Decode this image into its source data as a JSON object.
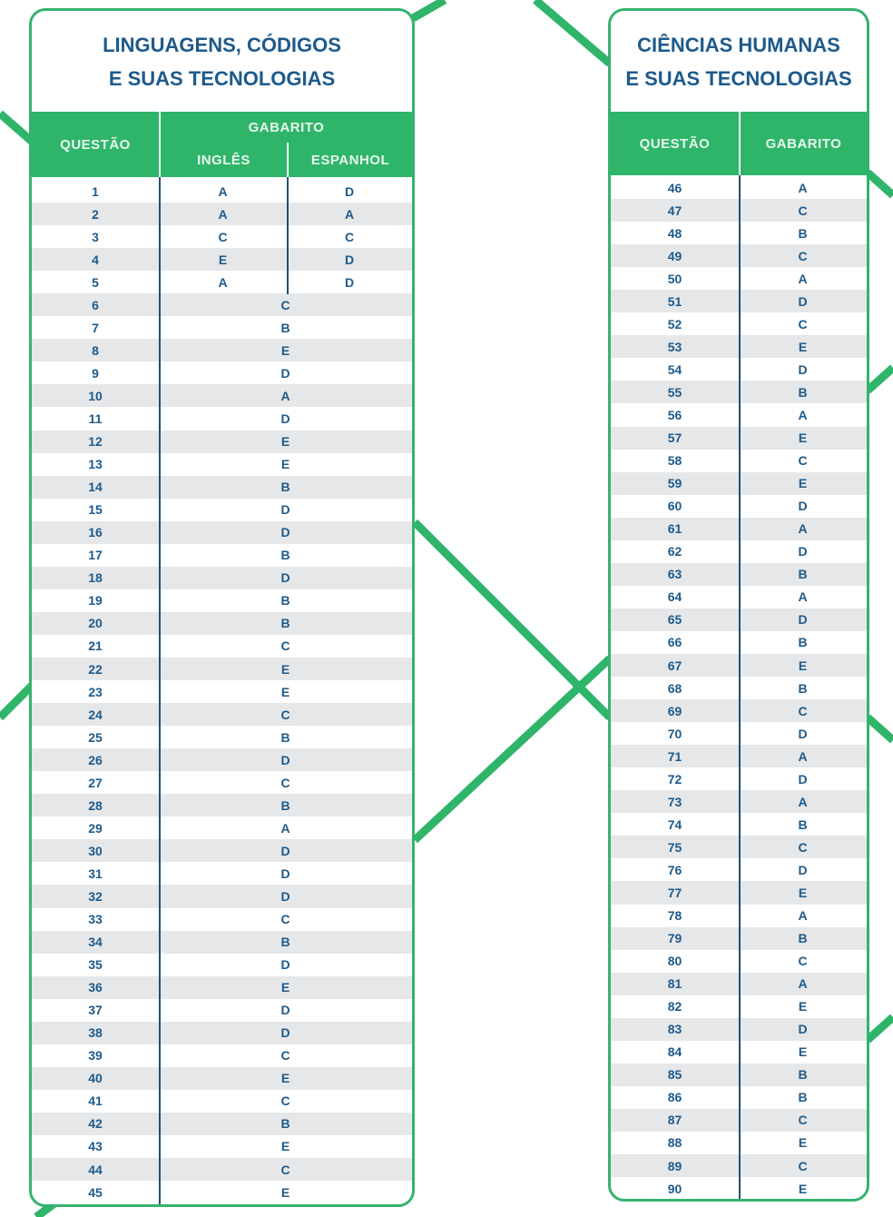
{
  "colors": {
    "green": "#2fb56a",
    "text": "#1d5a8c",
    "stripe": "#e6e7e9"
  },
  "left": {
    "title_line1": "LINGUAGENS, CÓDIGOS",
    "title_line2": "E SUAS TECNOLOGIAS",
    "col_questao": "QUESTÃO",
    "col_gabarito": "GABARITO",
    "col_ingles": "INGLÊS",
    "col_espanhol": "ESPANHOL",
    "language_rows": [
      {
        "q": "1",
        "ingles": "A",
        "espanhol": "D"
      },
      {
        "q": "2",
        "ingles": "A",
        "espanhol": "A"
      },
      {
        "q": "3",
        "ingles": "C",
        "espanhol": "C"
      },
      {
        "q": "4",
        "ingles": "E",
        "espanhol": "D"
      },
      {
        "q": "5",
        "ingles": "A",
        "espanhol": "D"
      }
    ],
    "rows": [
      {
        "q": "6",
        "a": "C"
      },
      {
        "q": "7",
        "a": "B"
      },
      {
        "q": "8",
        "a": "E"
      },
      {
        "q": "9",
        "a": "D"
      },
      {
        "q": "10",
        "a": "A"
      },
      {
        "q": "11",
        "a": "D"
      },
      {
        "q": "12",
        "a": "E"
      },
      {
        "q": "13",
        "a": "E"
      },
      {
        "q": "14",
        "a": "B"
      },
      {
        "q": "15",
        "a": "D"
      },
      {
        "q": "16",
        "a": "D"
      },
      {
        "q": "17",
        "a": "B"
      },
      {
        "q": "18",
        "a": "D"
      },
      {
        "q": "19",
        "a": "B"
      },
      {
        "q": "20",
        "a": "B"
      },
      {
        "q": "21",
        "a": "C"
      },
      {
        "q": "22",
        "a": "E"
      },
      {
        "q": "23",
        "a": "E"
      },
      {
        "q": "24",
        "a": "C"
      },
      {
        "q": "25",
        "a": "B"
      },
      {
        "q": "26",
        "a": "D"
      },
      {
        "q": "27",
        "a": "C"
      },
      {
        "q": "28",
        "a": "B"
      },
      {
        "q": "29",
        "a": "A"
      },
      {
        "q": "30",
        "a": "D"
      },
      {
        "q": "31",
        "a": "D"
      },
      {
        "q": "32",
        "a": "D"
      },
      {
        "q": "33",
        "a": "C"
      },
      {
        "q": "34",
        "a": "B"
      },
      {
        "q": "35",
        "a": "D"
      },
      {
        "q": "36",
        "a": "E"
      },
      {
        "q": "37",
        "a": "D"
      },
      {
        "q": "38",
        "a": "D"
      },
      {
        "q": "39",
        "a": "C"
      },
      {
        "q": "40",
        "a": "E"
      },
      {
        "q": "41",
        "a": "C"
      },
      {
        "q": "42",
        "a": "B"
      },
      {
        "q": "43",
        "a": "E"
      },
      {
        "q": "44",
        "a": "C"
      },
      {
        "q": "45",
        "a": "E"
      }
    ]
  },
  "right": {
    "title_line1": "CIÊNCIAS HUMANAS",
    "title_line2": "E SUAS TECNOLOGIAS",
    "col_questao": "QUESTÃO",
    "col_gabarito": "GABARITO",
    "rows": [
      {
        "q": "46",
        "a": "A"
      },
      {
        "q": "47",
        "a": "C"
      },
      {
        "q": "48",
        "a": "B"
      },
      {
        "q": "49",
        "a": "C"
      },
      {
        "q": "50",
        "a": "A"
      },
      {
        "q": "51",
        "a": "D"
      },
      {
        "q": "52",
        "a": "C"
      },
      {
        "q": "53",
        "a": "E"
      },
      {
        "q": "54",
        "a": "D"
      },
      {
        "q": "55",
        "a": "B"
      },
      {
        "q": "56",
        "a": "A"
      },
      {
        "q": "57",
        "a": "E"
      },
      {
        "q": "58",
        "a": "C"
      },
      {
        "q": "59",
        "a": "E"
      },
      {
        "q": "60",
        "a": "D"
      },
      {
        "q": "61",
        "a": "A"
      },
      {
        "q": "62",
        "a": "D"
      },
      {
        "q": "63",
        "a": "B"
      },
      {
        "q": "64",
        "a": "A"
      },
      {
        "q": "65",
        "a": "D"
      },
      {
        "q": "66",
        "a": "B"
      },
      {
        "q": "67",
        "a": "E"
      },
      {
        "q": "68",
        "a": "B"
      },
      {
        "q": "69",
        "a": "C"
      },
      {
        "q": "70",
        "a": "D"
      },
      {
        "q": "71",
        "a": "A"
      },
      {
        "q": "72",
        "a": "D"
      },
      {
        "q": "73",
        "a": "A"
      },
      {
        "q": "74",
        "a": "B"
      },
      {
        "q": "75",
        "a": "C"
      },
      {
        "q": "76",
        "a": "D"
      },
      {
        "q": "77",
        "a": "E"
      },
      {
        "q": "78",
        "a": "A"
      },
      {
        "q": "79",
        "a": "B"
      },
      {
        "q": "80",
        "a": "C"
      },
      {
        "q": "81",
        "a": "A"
      },
      {
        "q": "82",
        "a": "E"
      },
      {
        "q": "83",
        "a": "D"
      },
      {
        "q": "84",
        "a": "E"
      },
      {
        "q": "85",
        "a": "B"
      },
      {
        "q": "86",
        "a": "B"
      },
      {
        "q": "87",
        "a": "C"
      },
      {
        "q": "88",
        "a": "E"
      },
      {
        "q": "89",
        "a": "C"
      },
      {
        "q": "90",
        "a": "E"
      }
    ]
  }
}
